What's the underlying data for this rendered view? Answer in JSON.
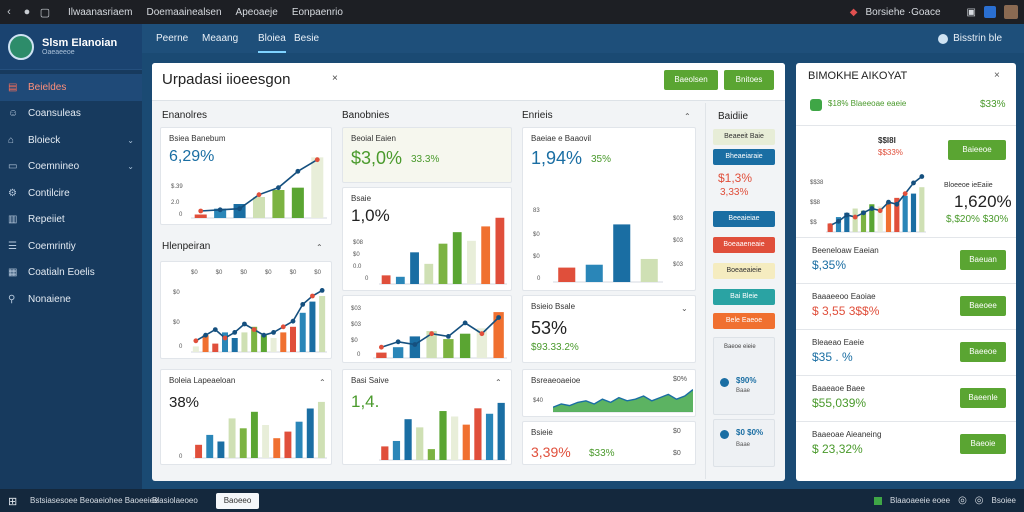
{
  "colors": {
    "green": "#5aa532",
    "blue": "#1a6ea3",
    "red": "#e04f3b",
    "orange": "#f07030",
    "teal": "#2aa3a3",
    "light_green": "#cfe0b4",
    "pale": "#e8eed9"
  },
  "topbar": {
    "menu": [
      "Ilwaanasriaem",
      "Doemaainealsen",
      "Apeoaeje",
      "Eonpaenrio"
    ],
    "user_text": "Borsiehe ·Goace",
    "icons": [
      "back-icon",
      "apple-icon",
      "window-icon",
      "bell-icon"
    ]
  },
  "sidebar": {
    "profile_name": "Slsm Elanoian",
    "profile_sub": "Oaeaeeoe",
    "items": [
      {
        "label": "Beieldes",
        "icon": "dashboard-icon",
        "active": true,
        "chevron": false
      },
      {
        "label": "Coansuleas",
        "icon": "people-icon",
        "active": false,
        "chevron": false
      },
      {
        "label": "Bloieck",
        "icon": "home-icon",
        "active": false,
        "chevron": true
      },
      {
        "label": "Coemnineo",
        "icon": "chat-icon",
        "active": false,
        "chevron": true
      },
      {
        "label": "Contilcire",
        "icon": "settings-icon",
        "active": false,
        "chevron": false
      },
      {
        "label": "Repeiiet",
        "icon": "report-icon",
        "active": false,
        "chevron": false
      },
      {
        "label": "Coemrintiy",
        "icon": "list-icon",
        "active": false,
        "chevron": false
      },
      {
        "label": "Coatialn Eoelis",
        "icon": "grid-icon",
        "active": false,
        "chevron": false
      },
      {
        "label": "Nonaiene",
        "icon": "person-icon",
        "active": false,
        "chevron": false
      }
    ]
  },
  "tabs": [
    {
      "label": "Peerne",
      "active": false
    },
    {
      "label": "Meaang",
      "active": false
    },
    {
      "label": "Bloiea",
      "active": true
    },
    {
      "label": "Besie",
      "active": false
    }
  ],
  "tab_action": "Bisstrin ble",
  "main_panel": {
    "title": "Urpadasi iioeesgon",
    "close": "×",
    "btn1": "Baeolsen",
    "btn2": "Bnitoes",
    "sections": {
      "s1": "Enanolres",
      "s2": "Banobnies",
      "s3": "Enrieis",
      "s4": "Hlenpeiran"
    },
    "cards": {
      "c1": {
        "label": "Bsiea Banebum",
        "value": "6,29%",
        "sub": ""
      },
      "c2": {
        "label": "Beoial Eaien",
        "value": "$3,0%",
        "sub": "33.3%"
      },
      "c3": {
        "label": "Baeiae e Baaovil",
        "value": "1,94%",
        "sub": "35%"
      },
      "c4": {
        "label": "Bsaie",
        "value": "1,0%",
        "sub": ""
      },
      "c5": {
        "label": "Bsreoae",
        "value": "",
        "sub": ""
      },
      "c6": {
        "label": "Bsieio Bsale",
        "value": "53%",
        "sub": "$93.33.2%"
      },
      "c7": {
        "label": "Boleia Lapeaeloan",
        "value": "38%",
        "sub": ""
      },
      "c8": {
        "label": "Basi Saive",
        "value": "1,4.",
        "sub": ""
      },
      "c9": {
        "label": "Bsreaeoaeioe",
        "value": "",
        "sub": ""
      },
      "c10": {
        "label": "Bsieie",
        "value": "3,39%",
        "sub": "$33%"
      }
    },
    "card1_ylabels": [
      "$.39",
      "2.0",
      "0"
    ],
    "card3_ylabels": [
      "83",
      "$0",
      "$0",
      "0"
    ],
    "card3_xlabels": [
      "s0",
      "s0",
      "s0",
      "s0",
      "s0",
      "$0"
    ],
    "c4_ylabels": [
      "$08",
      "$0",
      "0.0",
      "0"
    ],
    "c4_right": [
      "$03",
      "$03",
      "$03"
    ],
    "c5_side": [
      "$03",
      "$03",
      "$0",
      "0"
    ],
    "c9_ylabels": [
      "$40",
      "$0"
    ],
    "c9_right": "$0%",
    "c10_right": [
      "$0",
      "$0"
    ],
    "hlen_xlabels": [
      "$0",
      "$0",
      "$0",
      "$0",
      "$0",
      "$0"
    ],
    "hlen_ylabels": [
      "$0",
      "$0",
      "0"
    ],
    "c7_ylabels": [
      "$0",
      "$0",
      "0"
    ],
    "filter": {
      "title": "Baidiie",
      "buttons": [
        {
          "label": "Beaeeit Baie",
          "kind": "pale"
        },
        {
          "label": "Bheaeiaraie",
          "kind": "blue"
        },
        {
          "label": "Beeaieiae",
          "kind": "blue"
        },
        {
          "label": "Boeaaeneaie",
          "kind": "red"
        },
        {
          "label": "Boeaeaieie",
          "kind": "pale-yellow"
        },
        {
          "label": "Bai Bleie",
          "kind": "teal"
        },
        {
          "label": "Bele Eaeoe",
          "kind": "orange"
        }
      ],
      "kpi_value": "$1,3%",
      "kpi_sub": "3,33%",
      "box_label": "Baeoe eieie",
      "box_items": [
        {
          "value": "$90%",
          "sub": "Baae"
        },
        {
          "value": "$0 $0%",
          "sub": "Baae"
        }
      ]
    }
  },
  "right_panel": {
    "title": "BIMOKHE AIKOYAT",
    "close": "×",
    "header_text": "$18% Blaeeoae eaeie",
    "header_value": "$33%",
    "chart_label": "$$I8I",
    "chart_value": "$$33%",
    "chart_btn": "Baieeoe",
    "chart_right_label": "Bloeeoe ieEaiie",
    "chart_right_value": "1,620%",
    "chart_right_sub": "$,$20% $30%",
    "chart_ylabels": [
      "$$38",
      "$$8",
      "$$"
    ],
    "rows": [
      {
        "label": "Beeneloaw Eaeian",
        "value": "$,35%",
        "value_color": "blue",
        "btn": "Baeuan"
      },
      {
        "label": "Baaaeeoo Eaoiae",
        "value": "$ 3,55 3$$%",
        "value_color": "red",
        "btn": "Baeoee"
      },
      {
        "label": "Bleaeao Eaeie",
        "value": "$35 . %",
        "value_color": "blue",
        "btn": "Baeeoe"
      },
      {
        "label": "Baaeaoe Baee",
        "value": "$55,039%",
        "value_color": "green",
        "btn": "Baeenle"
      },
      {
        "label": "Baaeoae Aieaneing",
        "value": "$ 23,32%",
        "value_color": "green",
        "btn": "Baeoie"
      }
    ]
  },
  "statusbar": {
    "text1": "Bstsiasesoee  Beoaeiohee  Baoeeiee",
    "text2": "Blasiolaeoeo",
    "btn": "Baoeeo",
    "right_text": "Blaaoaeeie eoee",
    "right_text2": "Bsoiee"
  },
  "chart_data": [
    {
      "type": "bar",
      "id": "c1",
      "categories": [
        "1",
        "2",
        "3",
        "4",
        "5",
        "6",
        "7"
      ],
      "series": [
        {
          "values": [
            3,
            8,
            12,
            18,
            24,
            26,
            52
          ]
        }
      ],
      "line": [
        6,
        7,
        8,
        20,
        26,
        40,
        50
      ],
      "ylim": [
        0,
        60
      ]
    },
    {
      "type": "bar",
      "id": "c2",
      "categories": [
        "1",
        "2",
        "3",
        "4",
        "5",
        "6",
        "7",
        "8",
        "9"
      ],
      "series": [
        {
          "values": [
            6,
            5,
            22,
            14,
            28,
            36,
            30,
            40,
            46
          ]
        }
      ],
      "ylim": [
        0,
        50
      ]
    },
    {
      "type": "bar",
      "id": "c3",
      "categories": [
        "1",
        "2",
        "3",
        "4"
      ],
      "series": [
        {
          "values": [
            10,
            12,
            40,
            16
          ]
        }
      ],
      "ylim": [
        0,
        50
      ]
    },
    {
      "type": "bar",
      "id": "c4",
      "categories": [
        "1",
        "2",
        "3",
        "4",
        "5",
        "6",
        "7",
        "8"
      ],
      "series": [
        {
          "values": [
            4,
            8,
            16,
            20,
            14,
            18,
            22,
            34
          ]
        }
      ],
      "line": [
        8,
        12,
        10,
        18,
        16,
        26,
        18,
        30
      ],
      "ylim": [
        0,
        40
      ]
    },
    {
      "type": "bar",
      "id": "hlen",
      "categories": [
        "1",
        "2",
        "3",
        "4",
        "5",
        "6",
        "7",
        "8",
        "9",
        "10",
        "11",
        "12",
        "13",
        "14"
      ],
      "series": [
        {
          "values": [
            4,
            12,
            6,
            14,
            10,
            14,
            18,
            12,
            10,
            14,
            18,
            28,
            36,
            40
          ]
        }
      ],
      "line": [
        8,
        12,
        16,
        10,
        14,
        20,
        16,
        12,
        14,
        18,
        22,
        34,
        40,
        44
      ],
      "ylim": [
        0,
        50
      ]
    },
    {
      "type": "bar",
      "id": "c7",
      "categories": [
        "1",
        "2",
        "3",
        "4",
        "5",
        "6",
        "7",
        "8",
        "9",
        "10",
        "11",
        "12"
      ],
      "series": [
        {
          "values": [
            8,
            14,
            10,
            24,
            18,
            28,
            20,
            12,
            16,
            22,
            30,
            34
          ]
        }
      ],
      "ylim": [
        0,
        40
      ]
    },
    {
      "type": "bar",
      "id": "c8",
      "categories": [
        "1",
        "2",
        "3",
        "4",
        "5",
        "6",
        "7",
        "8",
        "9",
        "10",
        "11"
      ],
      "series": [
        {
          "values": [
            10,
            14,
            30,
            24,
            8,
            36,
            32,
            26,
            38,
            34,
            42
          ]
        }
      ],
      "ylim": [
        0,
        50
      ]
    },
    {
      "type": "area",
      "id": "c9",
      "x": [
        1,
        2,
        3,
        4,
        5,
        6,
        7,
        8,
        9,
        10,
        11,
        12,
        13,
        14,
        15,
        16,
        17,
        18
      ],
      "series": [
        {
          "values": [
            6,
            10,
            8,
            12,
            14,
            10,
            16,
            12,
            18,
            14,
            16,
            20,
            14,
            18,
            22,
            16,
            20,
            28
          ]
        }
      ],
      "ylim": [
        0,
        30
      ]
    },
    {
      "type": "bar",
      "id": "rp",
      "categories": [
        "1",
        "2",
        "3",
        "4",
        "5",
        "6",
        "7",
        "8",
        "9",
        "10",
        "11",
        "12"
      ],
      "series": [
        {
          "values": [
            8,
            14,
            18,
            22,
            20,
            26,
            24,
            28,
            32,
            34,
            36,
            42
          ]
        }
      ],
      "line": [
        6,
        10,
        16,
        14,
        18,
        22,
        20,
        28,
        26,
        36,
        46,
        52
      ],
      "ylim": [
        0,
        60
      ]
    }
  ]
}
